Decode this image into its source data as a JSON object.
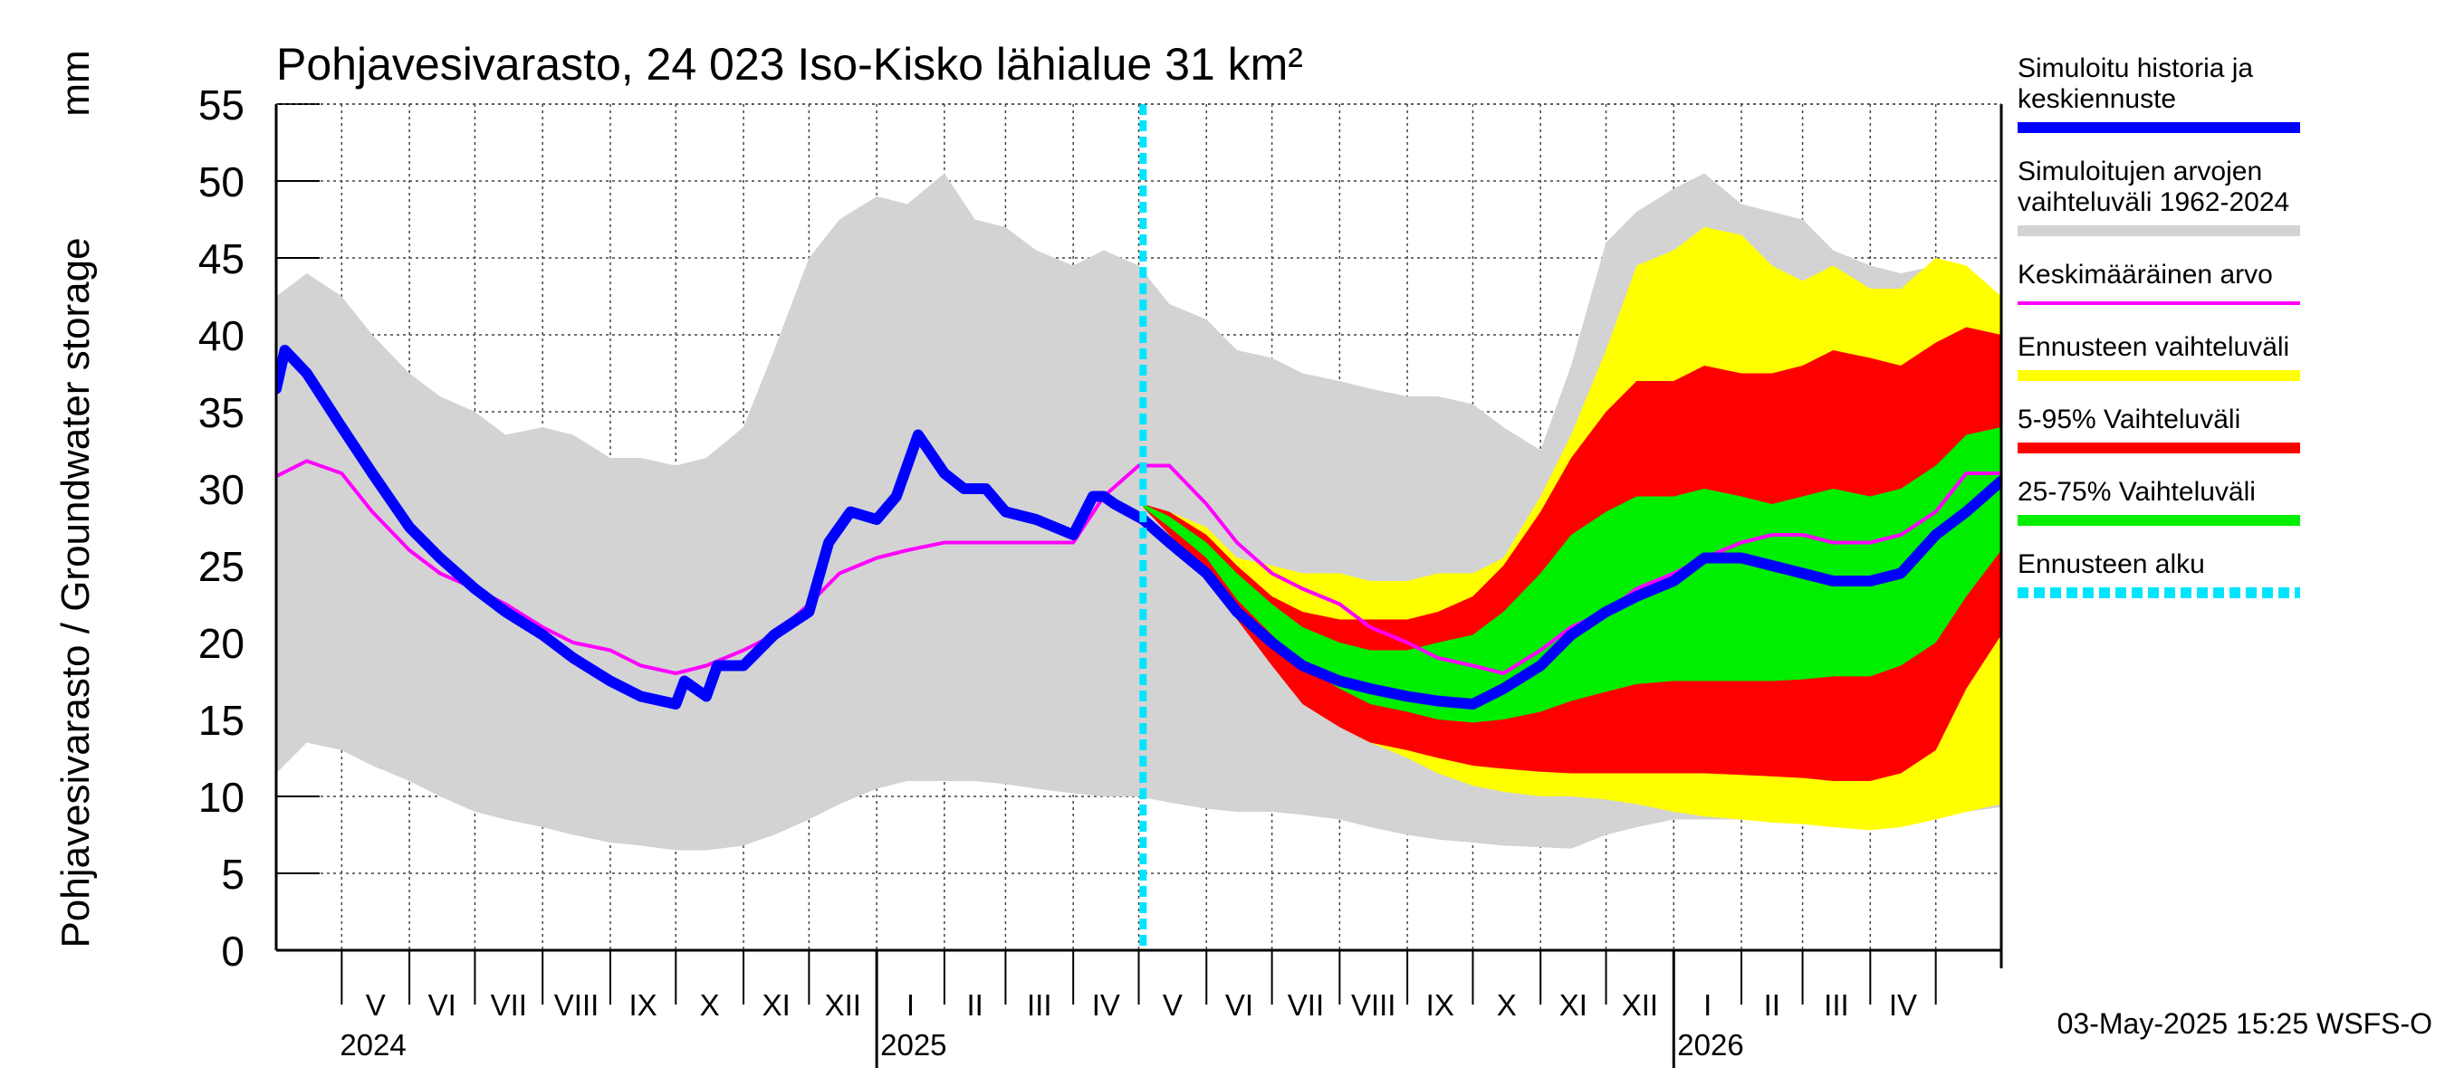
{
  "chart_data": {
    "type": "area",
    "title": "Pohjavesivarasto, 24 023 Iso-Kisko lähialue 31 km²",
    "ylabel": "Pohjavesivarasto / Groundwater storage",
    "yunit": "mm",
    "ylim": [
      0,
      55
    ],
    "yticks": [
      0,
      5,
      10,
      15,
      20,
      25,
      30,
      35,
      40,
      45,
      50,
      55
    ],
    "xlim": [
      "2024-04-01",
      "2026-05-31"
    ],
    "month_labels": [
      {
        "label": "V",
        "start": "2024-05-01"
      },
      {
        "label": "VI",
        "start": "2024-06-01"
      },
      {
        "label": "VII",
        "start": "2024-07-01"
      },
      {
        "label": "VIII",
        "start": "2024-08-01"
      },
      {
        "label": "IX",
        "start": "2024-09-01"
      },
      {
        "label": "X",
        "start": "2024-10-01"
      },
      {
        "label": "XI",
        "start": "2024-11-01"
      },
      {
        "label": "XII",
        "start": "2024-12-01"
      },
      {
        "label": "I",
        "start": "2025-01-01"
      },
      {
        "label": "II",
        "start": "2025-02-01"
      },
      {
        "label": "III",
        "start": "2025-03-01"
      },
      {
        "label": "IV",
        "start": "2025-04-01"
      },
      {
        "label": "V",
        "start": "2025-05-01"
      },
      {
        "label": "VI",
        "start": "2025-06-01"
      },
      {
        "label": "VII",
        "start": "2025-07-01"
      },
      {
        "label": "VIII",
        "start": "2025-08-01"
      },
      {
        "label": "IX",
        "start": "2025-09-01"
      },
      {
        "label": "X",
        "start": "2025-10-01"
      },
      {
        "label": "XI",
        "start": "2025-11-01"
      },
      {
        "label": "XII",
        "start": "2025-12-01"
      },
      {
        "label": "I",
        "start": "2026-01-01"
      },
      {
        "label": "II",
        "start": "2026-02-01"
      },
      {
        "label": "III",
        "start": "2026-03-01"
      },
      {
        "label": "IV",
        "start": "2026-04-01"
      }
    ],
    "year_labels": [
      {
        "label": "2024",
        "date": "2024-05-01"
      },
      {
        "label": "2025",
        "date": "2025-01-01"
      },
      {
        "label": "2026",
        "date": "2026-01-01"
      }
    ],
    "forecast_start": "2025-05-03",
    "grid": true,
    "legend_position": "right",
    "series": [
      {
        "name": "Simuloitujen arvojen vaihteluväli 1962-2024",
        "kind": "band",
        "color": "#d3d3d3",
        "x": [
          "2024-04-01",
          "2024-04-15",
          "2024-05-01",
          "2024-05-15",
          "2024-06-01",
          "2024-06-15",
          "2024-07-01",
          "2024-07-15",
          "2024-08-01",
          "2024-08-15",
          "2024-09-01",
          "2024-09-15",
          "2024-10-01",
          "2024-10-15",
          "2024-11-01",
          "2024-11-15",
          "2024-12-01",
          "2024-12-15",
          "2025-01-01",
          "2025-01-15",
          "2025-02-01",
          "2025-02-15",
          "2025-03-01",
          "2025-03-15",
          "2025-04-01",
          "2025-04-15",
          "2025-05-01",
          "2025-05-15",
          "2025-06-01",
          "2025-06-15",
          "2025-07-01",
          "2025-07-15",
          "2025-08-01",
          "2025-08-15",
          "2025-09-01",
          "2025-09-15",
          "2025-10-01",
          "2025-10-15",
          "2025-11-01",
          "2025-11-15",
          "2025-12-01",
          "2025-12-15",
          "2026-01-01",
          "2026-01-15",
          "2026-02-01",
          "2026-02-15",
          "2026-03-01",
          "2026-03-15",
          "2026-04-01",
          "2026-04-15",
          "2026-05-01",
          "2026-05-15",
          "2026-05-31"
        ],
        "low": [
          11.5,
          13.5,
          13.0,
          12.0,
          11.0,
          10.0,
          9.0,
          8.5,
          8.0,
          7.5,
          7.0,
          6.8,
          6.5,
          6.5,
          6.8,
          7.5,
          8.5,
          9.5,
          10.5,
          11.0,
          11.0,
          11.0,
          10.8,
          10.5,
          10.2,
          10.0,
          10.0,
          9.6,
          9.2,
          9.0,
          9.0,
          8.8,
          8.5,
          8.0,
          7.5,
          7.2,
          7.0,
          6.8,
          6.7,
          6.6,
          7.5,
          8.0,
          8.5,
          8.5,
          8.5,
          8.5,
          8.5,
          8.5,
          8.5,
          8.5,
          8.8,
          9.0,
          9.3
        ],
        "high": [
          42.5,
          44.0,
          42.5,
          40.0,
          37.5,
          36.0,
          35.0,
          33.5,
          34.0,
          33.5,
          32.0,
          32.0,
          31.5,
          32.0,
          34.0,
          39.0,
          45.0,
          47.5,
          49.0,
          48.5,
          50.5,
          47.5,
          47.0,
          45.5,
          44.5,
          45.5,
          44.5,
          42.0,
          41.0,
          39.0,
          38.5,
          37.5,
          37.0,
          36.5,
          36.0,
          36.0,
          35.5,
          34.0,
          32.5,
          38.0,
          46.0,
          48.0,
          49.5,
          50.5,
          48.5,
          48.0,
          47.5,
          45.5,
          44.5,
          44.0,
          44.5,
          43.5,
          42.5
        ]
      },
      {
        "name": "Ennusteen vaihteluväli",
        "kind": "band",
        "color": "#ffff00",
        "x": [
          "2025-05-03",
          "2025-05-15",
          "2025-06-01",
          "2025-06-15",
          "2025-07-01",
          "2025-07-15",
          "2025-08-01",
          "2025-08-15",
          "2025-09-01",
          "2025-09-15",
          "2025-10-01",
          "2025-10-15",
          "2025-11-01",
          "2025-11-15",
          "2025-12-01",
          "2025-12-15",
          "2026-01-01",
          "2026-01-15",
          "2026-02-01",
          "2026-02-15",
          "2026-03-01",
          "2026-03-15",
          "2026-04-01",
          "2026-04-15",
          "2026-05-01",
          "2026-05-15",
          "2026-05-31"
        ],
        "low": [
          29.0,
          27.5,
          25.5,
          22.5,
          19.5,
          16.5,
          14.5,
          13.5,
          12.5,
          11.5,
          10.7,
          10.3,
          10.0,
          10.0,
          9.8,
          9.5,
          9.0,
          8.7,
          8.5,
          8.3,
          8.2,
          8.0,
          7.8,
          8.0,
          8.5,
          9.0,
          9.5
        ],
        "high": [
          29.0,
          28.5,
          27.5,
          25.5,
          25.0,
          24.5,
          24.5,
          24.0,
          24.0,
          24.5,
          24.5,
          25.5,
          29.5,
          33.5,
          39.0,
          44.5,
          45.5,
          47.0,
          46.5,
          44.5,
          43.5,
          44.5,
          43.0,
          43.0,
          45.0,
          44.5,
          42.5
        ]
      },
      {
        "name": "5-95% Vaihteluväli",
        "kind": "band",
        "color": "#ff0000",
        "x": [
          "2025-05-03",
          "2025-05-15",
          "2025-06-01",
          "2025-06-15",
          "2025-07-01",
          "2025-07-15",
          "2025-08-01",
          "2025-08-15",
          "2025-09-01",
          "2025-09-15",
          "2025-10-01",
          "2025-10-15",
          "2025-11-01",
          "2025-11-15",
          "2025-12-01",
          "2025-12-15",
          "2026-01-01",
          "2026-01-15",
          "2026-02-01",
          "2026-02-15",
          "2026-03-01",
          "2026-03-15",
          "2026-04-01",
          "2026-04-15",
          "2026-05-01",
          "2026-05-15",
          "2026-05-31"
        ],
        "low": [
          28.8,
          27.0,
          24.5,
          21.5,
          18.5,
          16.0,
          14.5,
          13.5,
          13.0,
          12.5,
          12.0,
          11.8,
          11.6,
          11.5,
          11.5,
          11.5,
          11.5,
          11.5,
          11.4,
          11.3,
          11.2,
          11.0,
          11.0,
          11.5,
          13.0,
          17.0,
          20.5
        ],
        "high": [
          29.0,
          28.5,
          27.0,
          25.0,
          23.0,
          22.0,
          21.5,
          21.5,
          21.5,
          22.0,
          23.0,
          25.0,
          28.5,
          32.0,
          35.0,
          37.0,
          37.0,
          38.0,
          37.5,
          37.5,
          38.0,
          39.0,
          38.5,
          38.0,
          39.5,
          40.5,
          40.0
        ]
      },
      {
        "name": "25-75% Vaihteluväli",
        "kind": "band",
        "color": "#00ee00",
        "x": [
          "2025-05-03",
          "2025-05-15",
          "2025-06-01",
          "2025-06-15",
          "2025-07-01",
          "2025-07-15",
          "2025-08-01",
          "2025-08-15",
          "2025-09-01",
          "2025-09-15",
          "2025-10-01",
          "2025-10-15",
          "2025-11-01",
          "2025-11-15",
          "2025-12-01",
          "2025-12-15",
          "2026-01-01",
          "2026-01-15",
          "2026-02-01",
          "2026-02-15",
          "2026-03-01",
          "2026-03-15",
          "2026-04-01",
          "2026-04-15",
          "2026-05-01",
          "2026-05-15",
          "2026-05-31"
        ],
        "low": [
          28.8,
          27.5,
          25.5,
          22.8,
          20.5,
          18.5,
          17.0,
          16.0,
          15.5,
          15.0,
          14.8,
          15.0,
          15.5,
          16.2,
          16.8,
          17.3,
          17.5,
          17.5,
          17.5,
          17.5,
          17.6,
          17.8,
          17.8,
          18.5,
          20.0,
          23.0,
          26.0
        ],
        "high": [
          29.0,
          28.2,
          26.5,
          24.5,
          22.5,
          21.0,
          20.0,
          19.5,
          19.5,
          20.0,
          20.5,
          22.0,
          24.5,
          27.0,
          28.5,
          29.5,
          29.5,
          30.0,
          29.5,
          29.0,
          29.5,
          30.0,
          29.5,
          30.0,
          31.5,
          33.5,
          34.0
        ]
      },
      {
        "name": "Keskimääräinen arvo",
        "kind": "line",
        "color": "#ff00ff",
        "width": 4,
        "x": [
          "2024-04-01",
          "2024-04-15",
          "2024-05-01",
          "2024-05-15",
          "2024-06-01",
          "2024-06-15",
          "2024-07-01",
          "2024-07-15",
          "2024-08-01",
          "2024-08-15",
          "2024-09-01",
          "2024-09-15",
          "2024-10-01",
          "2024-10-15",
          "2024-11-01",
          "2024-11-15",
          "2024-12-01",
          "2024-12-15",
          "2025-01-01",
          "2025-01-15",
          "2025-02-01",
          "2025-02-15",
          "2025-03-01",
          "2025-03-15",
          "2025-04-01",
          "2025-04-15",
          "2025-05-01",
          "2025-05-15",
          "2025-06-01",
          "2025-06-15",
          "2025-07-01",
          "2025-07-15",
          "2025-08-01",
          "2025-08-15",
          "2025-09-01",
          "2025-09-15",
          "2025-10-01",
          "2025-10-15",
          "2025-11-01",
          "2025-11-15",
          "2025-12-01",
          "2025-12-15",
          "2026-01-01",
          "2026-01-15",
          "2026-02-01",
          "2026-02-15",
          "2026-03-01",
          "2026-03-15",
          "2026-04-01",
          "2026-04-15",
          "2026-05-01",
          "2026-05-15",
          "2026-05-31"
        ],
        "y": [
          30.8,
          31.8,
          31.0,
          28.5,
          26.0,
          24.5,
          23.5,
          22.5,
          21.0,
          20.0,
          19.5,
          18.5,
          18.0,
          18.5,
          19.5,
          20.5,
          22.5,
          24.5,
          25.5,
          26.0,
          26.5,
          26.5,
          26.5,
          26.5,
          26.5,
          29.5,
          31.5,
          31.5,
          29.0,
          26.5,
          24.5,
          23.5,
          22.5,
          21.0,
          20.0,
          19.0,
          18.5,
          18.0,
          19.5,
          21.0,
          22.0,
          23.5,
          24.5,
          25.5,
          26.5,
          27.0,
          27.0,
          26.5,
          26.5,
          27.0,
          28.5,
          31.0,
          31.0
        ]
      },
      {
        "name": "Simuloitu historia ja keskiennuste",
        "kind": "line",
        "color": "#0000ff",
        "width": 12,
        "x": [
          "2024-04-01",
          "2024-04-05",
          "2024-04-15",
          "2024-05-01",
          "2024-05-15",
          "2024-06-01",
          "2024-06-15",
          "2024-07-01",
          "2024-07-15",
          "2024-08-01",
          "2024-08-15",
          "2024-09-01",
          "2024-09-15",
          "2024-10-01",
          "2024-10-05",
          "2024-10-15",
          "2024-10-20",
          "2024-11-01",
          "2024-11-15",
          "2024-12-01",
          "2024-12-10",
          "2024-12-20",
          "2025-01-01",
          "2025-01-10",
          "2025-01-20",
          "2025-02-01",
          "2025-02-10",
          "2025-02-20",
          "2025-03-01",
          "2025-03-15",
          "2025-04-01",
          "2025-04-10",
          "2025-04-15",
          "2025-04-20",
          "2025-05-03",
          "2025-05-15",
          "2025-06-01",
          "2025-06-15",
          "2025-07-01",
          "2025-07-15",
          "2025-08-01",
          "2025-08-15",
          "2025-09-01",
          "2025-09-15",
          "2025-10-01",
          "2025-10-15",
          "2025-11-01",
          "2025-11-15",
          "2025-12-01",
          "2025-12-15",
          "2026-01-01",
          "2026-01-15",
          "2026-02-01",
          "2026-02-15",
          "2026-03-01",
          "2026-03-15",
          "2026-04-01",
          "2026-04-15",
          "2026-05-01",
          "2026-05-15",
          "2026-05-31"
        ],
        "y": [
          36.5,
          39.0,
          37.5,
          34.0,
          31.0,
          27.5,
          25.5,
          23.5,
          22.0,
          20.5,
          19.0,
          17.5,
          16.5,
          16.0,
          17.5,
          16.5,
          18.5,
          18.5,
          20.5,
          22.0,
          26.5,
          28.5,
          28.0,
          29.5,
          33.5,
          31.0,
          30.0,
          30.0,
          28.5,
          28.0,
          27.0,
          29.5,
          29.5,
          29.0,
          28.0,
          26.5,
          24.5,
          22.0,
          20.0,
          18.5,
          17.5,
          17.0,
          16.5,
          16.2,
          16.0,
          17.0,
          18.5,
          20.5,
          22.0,
          23.0,
          24.0,
          25.5,
          25.5,
          25.0,
          24.5,
          24.0,
          24.0,
          24.5,
          27.0,
          28.5,
          30.5
        ]
      }
    ],
    "legend": [
      {
        "label_lines": [
          "Simuloitu historia ja",
          "keskiennuste"
        ],
        "color": "#0000ff",
        "style": "thick"
      },
      {
        "label_lines": [
          "Simuloitujen arvojen",
          "vaihteluväli 1962-2024"
        ],
        "color": "#d3d3d3",
        "style": "thick"
      },
      {
        "label_lines": [
          "Keskimääräinen arvo"
        ],
        "color": "#ff00ff",
        "style": "thin"
      },
      {
        "label_lines": [
          "Ennusteen vaihteluväli"
        ],
        "color": "#ffff00",
        "style": "thick"
      },
      {
        "label_lines": [
          "5-95% Vaihteluväli"
        ],
        "color": "#ff0000",
        "style": "thick"
      },
      {
        "label_lines": [
          "25-75% Vaihteluväli"
        ],
        "color": "#00ee00",
        "style": "thick"
      },
      {
        "label_lines": [
          "Ennusteen alku"
        ],
        "color": "#00e5ff",
        "style": "dashed"
      }
    ],
    "timestamp": "03-May-2025 15:25 WSFS-O"
  }
}
